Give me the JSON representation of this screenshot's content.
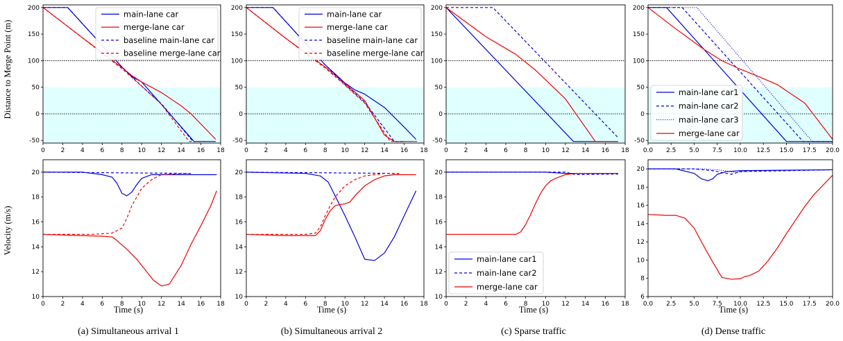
{
  "colors": {
    "main": "#0000dd",
    "merge": "#ee0000",
    "band": "#e0ffff"
  },
  "captions": [
    "(a) Simultaneous arrival  1",
    "(b) Simultaneous arrival  2",
    "(c) Sparse traffic",
    "(d) Dense traffic"
  ],
  "ylabel_top": "Distance to Merge Point (m)",
  "ylabel_bottom": "Velocity (m/s)",
  "xlabel": "Time (s)",
  "chart_data": [
    {
      "type": "line",
      "title": "",
      "xlabel": "",
      "ylabel": "Distance to Merge Point (m)",
      "xlim": [
        0,
        18
      ],
      "ylim": [
        -55,
        205
      ],
      "xticks": [
        "0",
        "2",
        "4",
        "6",
        "8",
        "10",
        "12",
        "14",
        "16",
        "18"
      ],
      "yticks": [
        "-50",
        "0",
        "50",
        "100",
        "150",
        "200"
      ],
      "hlines": [
        100,
        0
      ],
      "band": [
        -55,
        50
      ],
      "legend": "top-right",
      "series": [
        {
          "name": "main-lane car",
          "color": "main",
          "style": "solid",
          "x": [
            0,
            2.5,
            8,
            9,
            10,
            15.3,
            17.5
          ],
          "y": [
            200,
            200,
            88,
            70,
            60,
            -52,
            -52
          ]
        },
        {
          "name": "merge-lane car",
          "color": "merge",
          "style": "solid",
          "x": [
            0,
            4,
            8,
            9,
            10,
            12,
            14,
            15,
            17.5
          ],
          "y": [
            200,
            143,
            87,
            72,
            60,
            40,
            15,
            0,
            -48
          ]
        },
        {
          "name": "baseline main-lane car",
          "color": "main",
          "style": "dashed",
          "x": [
            0,
            2.5,
            8,
            9,
            10,
            12,
            15.2,
            16
          ],
          "y": [
            200,
            200,
            88,
            70,
            52,
            19,
            -52,
            -52
          ]
        },
        {
          "name": "baseline merge-lane car",
          "color": "merge",
          "style": "dashed",
          "x": [
            0,
            4,
            8,
            10,
            12,
            14.8,
            16
          ],
          "y": [
            200,
            143,
            85,
            52,
            18,
            -52,
            -52
          ]
        }
      ]
    },
    {
      "type": "line",
      "title": "",
      "xlabel": "",
      "ylabel": "",
      "xlim": [
        0,
        18
      ],
      "ylim": [
        -55,
        205
      ],
      "xticks": [
        "0",
        "2",
        "4",
        "6",
        "8",
        "10",
        "12",
        "14",
        "16",
        "18"
      ],
      "yticks": [
        "-50",
        "0",
        "50",
        "100",
        "150",
        "200"
      ],
      "hlines": [
        100,
        0
      ],
      "band": [
        -55,
        50
      ],
      "legend": "top-right",
      "series": [
        {
          "name": "main-lane car",
          "color": "main",
          "style": "solid",
          "x": [
            0,
            2.7,
            8,
            10,
            11,
            12,
            14,
            16,
            17.2
          ],
          "y": [
            200,
            200,
            92,
            58,
            45,
            37,
            12,
            -25,
            -48
          ]
        },
        {
          "name": "merge-lane car",
          "color": "merge",
          "style": "solid",
          "x": [
            0,
            4,
            8,
            10,
            12,
            14,
            15,
            17.3
          ],
          "y": [
            200,
            142,
            88,
            57,
            25,
            -40,
            -52,
            -52
          ]
        },
        {
          "name": "baseline main-lane car",
          "color": "main",
          "style": "dashed",
          "x": [
            0,
            2.7,
            8,
            10,
            12,
            15,
            16
          ],
          "y": [
            200,
            200,
            92,
            55,
            22,
            -52,
            -52
          ]
        },
        {
          "name": "baseline merge-lane car",
          "color": "merge",
          "style": "dashed",
          "x": [
            0,
            4,
            8,
            10,
            12,
            14.6,
            16
          ],
          "y": [
            200,
            142,
            86,
            54,
            20,
            -52,
            -52
          ]
        }
      ]
    },
    {
      "type": "line",
      "title": "",
      "xlabel": "",
      "ylabel": "",
      "xlim": [
        0,
        18
      ],
      "ylim": [
        -55,
        205
      ],
      "xticks": [
        "0",
        "2",
        "4",
        "6",
        "8",
        "10",
        "12",
        "14",
        "16",
        "18"
      ],
      "yticks": [
        "-50",
        "0",
        "50",
        "100",
        "150",
        "200"
      ],
      "hlines": [
        100,
        0
      ],
      "band": [
        -55,
        50
      ],
      "series": [
        {
          "name": "main-lane car1",
          "color": "main",
          "style": "solid",
          "x": [
            0,
            12.8,
            17.3
          ],
          "y": [
            200,
            -52,
            -52
          ]
        },
        {
          "name": "main-lane car2",
          "color": "main",
          "style": "dashed",
          "x": [
            0,
            4.7,
            17.3
          ],
          "y": [
            200,
            200,
            -45
          ]
        },
        {
          "name": "merge-lane car",
          "color": "merge",
          "style": "solid",
          "x": [
            0,
            4,
            7,
            9,
            12,
            15,
            17.3
          ],
          "y": [
            200,
            145,
            112,
            82,
            28,
            -52,
            -52
          ]
        }
      ]
    },
    {
      "type": "line",
      "title": "",
      "xlabel": "",
      "ylabel": "",
      "xlim": [
        0,
        20
      ],
      "ylim": [
        -55,
        205
      ],
      "xticks": [
        "0.0",
        "2.5",
        "5.0",
        "7.5",
        "10.0",
        "12.5",
        "15.0",
        "17.5",
        "20.0"
      ],
      "yticks": [
        "-50",
        "0",
        "50",
        "100",
        "150",
        "200"
      ],
      "hlines": [
        100,
        0
      ],
      "band": [
        -55,
        50
      ],
      "legend": "lower-left",
      "series": [
        {
          "name": "main-lane car1",
          "color": "main",
          "style": "solid",
          "x": [
            0,
            2,
            15,
            20
          ],
          "y": [
            200,
            200,
            -52,
            -52
          ]
        },
        {
          "name": "main-lane car2",
          "color": "main",
          "style": "dashed",
          "x": [
            0,
            3.7,
            16.8,
            20
          ],
          "y": [
            200,
            200,
            -52,
            -52
          ]
        },
        {
          "name": "main-lane car3",
          "color": "main",
          "style": "dotted",
          "x": [
            0,
            5.3,
            17.8,
            20
          ],
          "y": [
            200,
            200,
            -52,
            -52
          ]
        },
        {
          "name": "merge-lane car",
          "color": "merge",
          "style": "solid",
          "x": [
            0,
            3,
            6,
            8,
            10,
            12,
            14,
            17,
            20
          ],
          "y": [
            200,
            160,
            122,
            100,
            84,
            70,
            55,
            20,
            -48
          ]
        }
      ]
    },
    {
      "type": "line",
      "title": "",
      "xlabel": "Time (s)",
      "ylabel": "Velocity (m/s)",
      "xlim": [
        0,
        18
      ],
      "ylim": [
        10,
        21
      ],
      "xticks": [
        "0",
        "2",
        "4",
        "6",
        "8",
        "10",
        "12",
        "14",
        "16",
        "18"
      ],
      "yticks": [
        "10",
        "12",
        "14",
        "16",
        "18",
        "20"
      ],
      "series": [
        {
          "name": "main-lane car",
          "color": "main",
          "style": "solid",
          "x": [
            0,
            4,
            6,
            7,
            7.5,
            8,
            8.5,
            9,
            9.5,
            10,
            11,
            12,
            17.6
          ],
          "y": [
            20,
            20,
            19.8,
            19.6,
            19.1,
            18.3,
            18.1,
            18.4,
            19,
            19.5,
            19.8,
            19.8,
            19.8
          ]
        },
        {
          "name": "baseline main-lane car",
          "color": "main",
          "style": "dashed",
          "x": [
            0,
            15
          ],
          "y": [
            20,
            19.9
          ]
        },
        {
          "name": "merge-lane car",
          "color": "merge",
          "style": "solid",
          "x": [
            0,
            2,
            4,
            6,
            7,
            7.5,
            8.5,
            9.5,
            10.5,
            11.2,
            12,
            12.8,
            14,
            15,
            16,
            17,
            17.6
          ],
          "y": [
            15,
            14.95,
            14.9,
            14.85,
            14.8,
            14.5,
            13.8,
            13,
            12,
            11.3,
            10.85,
            11,
            12.5,
            14.2,
            15.7,
            17.3,
            18.5
          ]
        },
        {
          "name": "baseline merge-lane car",
          "color": "merge",
          "style": "dashed",
          "x": [
            0,
            5,
            7,
            8,
            8.5,
            9,
            10,
            11,
            12,
            14,
            15
          ],
          "y": [
            15,
            15,
            15.1,
            15.5,
            16.3,
            17.3,
            18.7,
            19.4,
            19.8,
            19.9,
            19.9
          ]
        }
      ]
    },
    {
      "type": "line",
      "title": "",
      "xlabel": "Time (s)",
      "ylabel": "",
      "xlim": [
        0,
        18
      ],
      "ylim": [
        10,
        21
      ],
      "xticks": [
        "0",
        "2",
        "4",
        "6",
        "8",
        "10",
        "12",
        "14",
        "16",
        "18"
      ],
      "yticks": [
        "10",
        "12",
        "14",
        "16",
        "18",
        "20"
      ],
      "series": [
        {
          "name": "main-lane car",
          "color": "main",
          "style": "solid",
          "x": [
            0,
            6,
            7.5,
            8.3,
            9,
            10,
            11,
            12,
            13,
            14,
            15,
            16,
            17.2
          ],
          "y": [
            20,
            19.9,
            19.7,
            19.2,
            18.1,
            16.5,
            14.8,
            13,
            12.9,
            13.5,
            14.8,
            16.5,
            18.5
          ]
        },
        {
          "name": "baseline main-lane car",
          "color": "main",
          "style": "dashed",
          "x": [
            0,
            15.5
          ],
          "y": [
            20,
            19.9
          ]
        },
        {
          "name": "merge-lane car",
          "color": "merge",
          "style": "solid",
          "x": [
            0,
            2,
            4,
            6,
            7,
            7.5,
            8,
            8.5,
            9,
            9.5,
            10,
            10.5,
            11,
            12,
            13,
            14,
            15,
            16,
            17.2
          ],
          "y": [
            15,
            14.95,
            14.9,
            14.9,
            14.9,
            15.3,
            16.2,
            16.9,
            17.3,
            17.4,
            17.45,
            17.6,
            18.1,
            18.9,
            19.4,
            19.7,
            19.8,
            19.8,
            19.8
          ]
        },
        {
          "name": "baseline merge-lane car",
          "color": "merge",
          "style": "dashed",
          "x": [
            0,
            6,
            7,
            7.5,
            8,
            8.5,
            9,
            10,
            11,
            12,
            14,
            15.5
          ],
          "y": [
            15,
            15,
            15.1,
            15.6,
            16.5,
            17.3,
            18,
            18.9,
            19.4,
            19.7,
            19.9,
            19.9
          ]
        }
      ]
    },
    {
      "type": "line",
      "title": "",
      "xlabel": "Time (s)",
      "ylabel": "",
      "xlim": [
        0,
        18
      ],
      "ylim": [
        10,
        21
      ],
      "xticks": [
        "0",
        "2",
        "4",
        "6",
        "8",
        "10",
        "12",
        "14",
        "16",
        "18"
      ],
      "yticks": [
        "10",
        "12",
        "14",
        "16",
        "18",
        "20"
      ],
      "legend": "lower-left",
      "series": [
        {
          "name": "main-lane car1",
          "color": "main",
          "style": "solid",
          "x": [
            0,
            10,
            11,
            12,
            13,
            17.3
          ],
          "y": [
            20,
            20,
            19.95,
            19.9,
            19.9,
            19.9
          ]
        },
        {
          "name": "main-lane car2",
          "color": "main",
          "style": "dashed",
          "x": [
            0,
            12,
            13,
            17.3
          ],
          "y": [
            20,
            20,
            19.8,
            19.85
          ]
        },
        {
          "name": "merge-lane car",
          "color": "merge",
          "style": "solid",
          "x": [
            0,
            7,
            7.5,
            8,
            8.5,
            9,
            9.5,
            10,
            10.5,
            11,
            12,
            13,
            17.3
          ],
          "y": [
            15,
            15,
            15.2,
            15.8,
            16.6,
            17.5,
            18.3,
            18.9,
            19.3,
            19.5,
            19.8,
            19.9,
            19.9
          ]
        }
      ]
    },
    {
      "type": "line",
      "title": "",
      "xlabel": "Time (s)",
      "ylabel": "",
      "xlim": [
        0,
        20
      ],
      "ylim": [
        6,
        21
      ],
      "xticks": [
        "0.0",
        "2.5",
        "5.0",
        "7.5",
        "10.0",
        "12.5",
        "15.0",
        "17.5",
        "20.0"
      ],
      "yticks": [
        "6",
        "8",
        "10",
        "12",
        "14",
        "16",
        "18",
        "20"
      ],
      "series": [
        {
          "name": "main-lane car1",
          "color": "main",
          "style": "solid",
          "x": [
            0,
            3,
            5,
            5.8,
            6.5,
            7,
            7.5,
            8.5,
            10,
            20
          ],
          "y": [
            20,
            20,
            19.5,
            18.9,
            18.7,
            18.9,
            19.4,
            19.7,
            19.8,
            19.9
          ]
        },
        {
          "name": "main-lane car2",
          "color": "main",
          "style": "dashed",
          "x": [
            0,
            5,
            7,
            8,
            9,
            10,
            20
          ],
          "y": [
            20,
            20,
            19.8,
            19.6,
            19.4,
            19.7,
            19.9
          ]
        },
        {
          "name": "main-lane car3",
          "color": "main",
          "style": "dotted",
          "x": [
            0,
            6,
            8,
            9.5,
            11,
            20
          ],
          "y": [
            20,
            20,
            19.85,
            19.6,
            19.8,
            19.9
          ]
        },
        {
          "name": "merge-lane car",
          "color": "merge",
          "style": "solid",
          "x": [
            0,
            2,
            3,
            4,
            5,
            6,
            7,
            8,
            9,
            10,
            10.5,
            11,
            12,
            13,
            14,
            15,
            16,
            17,
            18,
            20
          ],
          "y": [
            15,
            14.9,
            14.9,
            14.6,
            13.5,
            11.6,
            9.8,
            8.1,
            7.9,
            7.95,
            8.2,
            8.3,
            8.8,
            9.9,
            11.3,
            12.9,
            14.4,
            15.9,
            17.2,
            19.3
          ]
        }
      ]
    }
  ]
}
